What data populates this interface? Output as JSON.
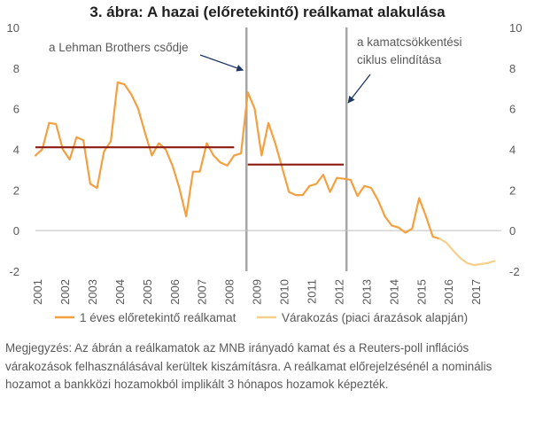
{
  "chart_data": {
    "type": "line",
    "title": "3. ábra: A hazai (előretekintő) reálkamat alakulása",
    "ylim": [
      -2,
      10
    ],
    "yticks": [
      -2,
      0,
      2,
      4,
      6,
      8,
      10
    ],
    "xlim": [
      2001,
      2018
    ],
    "x_tick_labels": [
      "2001",
      "2002",
      "2003",
      "2004",
      "2005",
      "2006",
      "2007",
      "2008",
      "2009",
      "2010",
      "2011",
      "2012",
      "2013",
      "2014",
      "2015",
      "2016",
      "2017"
    ],
    "grid": false,
    "legend": "bottom",
    "colors": {
      "realkamat": "#f4a040",
      "varakozas": "#f5d08a",
      "avg_line": "#8b1a10",
      "vline": "#a6a6a6",
      "axis": "#bfbfbf",
      "arrow": "#1f3864"
    },
    "series": [
      {
        "name": "1 éves előretekintő reálkamat",
        "x": [
          2001.0,
          2001.25,
          2001.5,
          2001.75,
          2002.0,
          2002.25,
          2002.5,
          2002.75,
          2003.0,
          2003.25,
          2003.5,
          2003.75,
          2004.0,
          2004.25,
          2004.5,
          2004.75,
          2005.0,
          2005.25,
          2005.5,
          2005.75,
          2006.0,
          2006.25,
          2006.5,
          2006.75,
          2007.0,
          2007.25,
          2007.5,
          2007.75,
          2008.0,
          2008.25,
          2008.5,
          2008.75,
          2009.0,
          2009.25,
          2009.5,
          2009.75,
          2010.0,
          2010.25,
          2010.5,
          2010.75,
          2011.0,
          2011.25,
          2011.5,
          2011.75,
          2012.0,
          2012.25,
          2012.5,
          2012.75,
          2013.0,
          2013.25,
          2013.5,
          2013.75,
          2014.0,
          2014.25,
          2014.5,
          2014.75,
          2015.0,
          2015.25,
          2015.5,
          2015.75
        ],
        "y": [
          3.7,
          4.0,
          5.3,
          5.25,
          4.0,
          3.5,
          4.6,
          4.45,
          2.3,
          2.1,
          3.9,
          4.4,
          7.3,
          7.2,
          6.7,
          6.0,
          4.8,
          3.7,
          4.3,
          4.0,
          3.2,
          2.1,
          0.7,
          2.9,
          2.9,
          4.3,
          3.7,
          3.35,
          3.2,
          3.7,
          3.8,
          6.8,
          6.0,
          3.7,
          5.3,
          4.3,
          3.1,
          1.9,
          1.75,
          1.75,
          2.2,
          2.3,
          2.75,
          1.9,
          2.6,
          2.55,
          2.5,
          1.7,
          2.2,
          2.1,
          1.5,
          0.7,
          0.25,
          0.15,
          -0.1,
          0.1,
          1.6,
          0.7,
          -0.3,
          -0.4
        ]
      },
      {
        "name": "Várakozás (piaci árazások alapján)",
        "x": [
          2015.75,
          2016.0,
          2016.25,
          2016.5,
          2016.75,
          2017.0,
          2017.25,
          2017.5,
          2017.75
        ],
        "y": [
          -0.4,
          -0.6,
          -1.0,
          -1.35,
          -1.6,
          -1.7,
          -1.65,
          -1.6,
          -1.5
        ]
      }
    ],
    "horizontal_segments": [
      {
        "x": [
          2001.0,
          2008.25
        ],
        "y": 4.1
      },
      {
        "x": [
          2008.75,
          2012.25
        ],
        "y": 3.25
      }
    ],
    "vertical_lines": [
      2008.7,
      2012.35
    ],
    "annotations": [
      {
        "lines": [
          "a Lehman Brothers csődje"
        ],
        "arrow_to": [
          2008.7,
          7.9
        ]
      },
      {
        "lines": [
          "a kamatcsökkentési",
          "ciklus elindítása"
        ],
        "arrow_to": [
          2012.35,
          6.3
        ]
      }
    ]
  },
  "note": "Megjegyzés: Az ábrán a reálkamatok az MNB irányadó kamat és a Reuters-poll inflációs várakozások felhasználásával kerültek kiszámításra. A reálkamat előrejelzésénél a nominális hozamot a bankközi hozamokból implikált 3 hónapos hozamok képezték."
}
